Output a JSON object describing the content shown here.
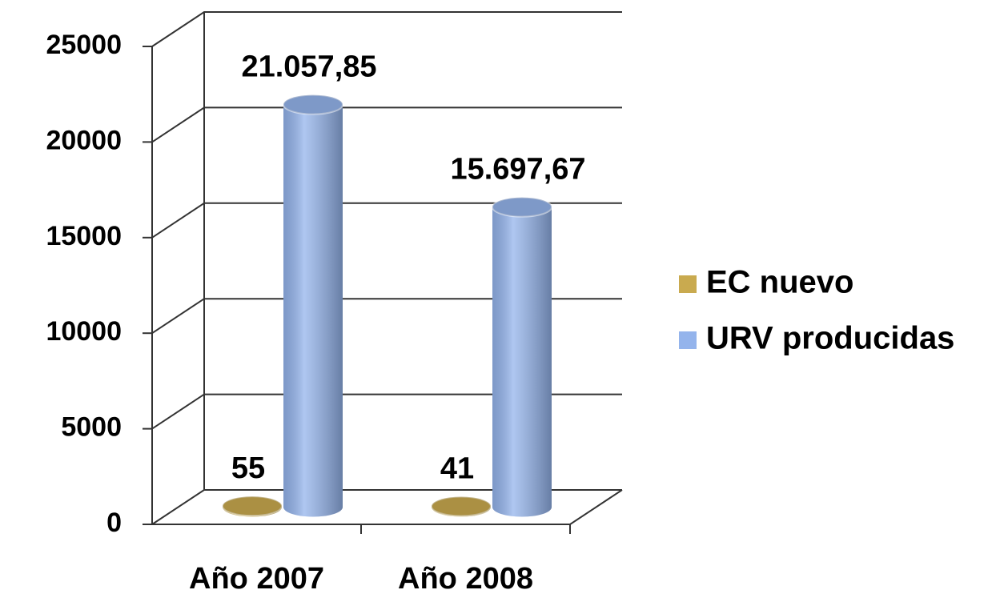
{
  "chart_data": {
    "type": "bar3d",
    "categories": [
      "Año 2007",
      "Año 2008"
    ],
    "series": [
      {
        "name": "EC nuevo",
        "color": "#c9aa4f",
        "values": [
          55,
          41
        ],
        "value_labels": [
          "55",
          "41"
        ]
      },
      {
        "name": "URV producidas",
        "color": "#94b4ec",
        "values": [
          21057.85,
          15697.67
        ],
        "value_labels": [
          "21.057,85",
          "15.697,67"
        ]
      }
    ],
    "ylim": [
      0,
      25000
    ],
    "yticks": [
      0,
      5000,
      10000,
      15000,
      20000,
      25000
    ],
    "grid": true,
    "legend": "right"
  }
}
